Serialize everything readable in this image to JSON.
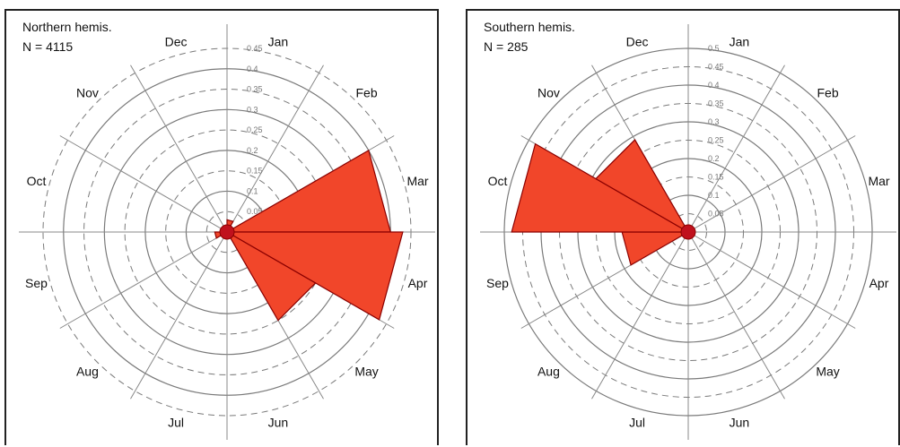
{
  "chart_data": [
    {
      "type": "rose",
      "title": "Northern hemis.",
      "n_text": "N = 4115",
      "months": [
        "Jan",
        "Feb",
        "Mar",
        "Apr",
        "May",
        "Jun",
        "Jul",
        "Aug",
        "Sep",
        "Oct",
        "Nov",
        "Dec"
      ],
      "values": [
        0.03,
        0.0,
        0.4,
        0.43,
        0.25,
        0.0,
        0.0,
        0.0,
        0.03,
        0.0,
        0.0,
        0.0
      ],
      "rlim": [
        0,
        0.45
      ],
      "ticks": [
        0.05,
        0.1,
        0.15,
        0.2,
        0.25,
        0.3,
        0.35,
        0.4,
        0.45
      ],
      "tick_labels": [
        "0.05",
        "0.1",
        "0.15",
        "0.2",
        "0.25",
        "0.3",
        "0.35",
        "0.4",
        "0.45"
      ],
      "colors": {
        "fill": "#f1462a",
        "stroke": "#8b0000",
        "center": "#c0111d",
        "grid": "#7a7a7a",
        "axis": "#888888"
      }
    },
    {
      "type": "rose",
      "title": "Southern hemis.",
      "n_text": "N = 285",
      "months": [
        "Jan",
        "Feb",
        "Mar",
        "Apr",
        "May",
        "Jun",
        "Jul",
        "Aug",
        "Sep",
        "Oct",
        "Nov",
        "Dec"
      ],
      "values": [
        0.0,
        0.0,
        0.0,
        0.0,
        0.0,
        0.0,
        0.0,
        0.0,
        0.18,
        0.48,
        0.29,
        0.0
      ],
      "rlim": [
        0,
        0.5
      ],
      "ticks": [
        0.05,
        0.1,
        0.15,
        0.2,
        0.25,
        0.3,
        0.35,
        0.4,
        0.45,
        0.5
      ],
      "tick_labels": [
        "0.05",
        "0.1",
        "0.15",
        "0.2",
        "0.25",
        "0.3",
        "0.35",
        "0.4",
        "0.45",
        "0.5"
      ],
      "colors": {
        "fill": "#f1462a",
        "stroke": "#8b0000",
        "center": "#c0111d",
        "grid": "#7a7a7a",
        "axis": "#888888"
      }
    }
  ]
}
